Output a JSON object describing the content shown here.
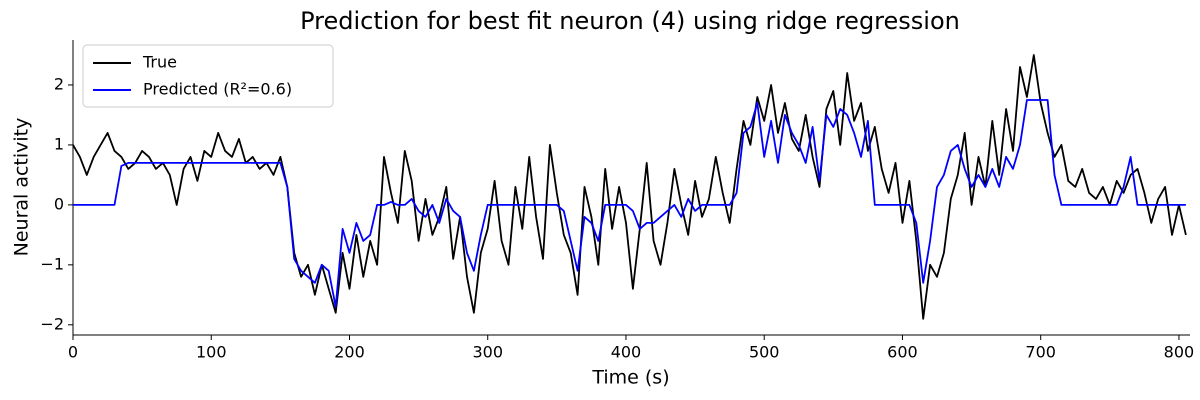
{
  "chart_data": {
    "type": "line",
    "title": "Prediction for best fit neuron (4) using ridge regression",
    "x_label": "Time (s)",
    "y_label": "Neural activity",
    "xlim": [
      0,
      808
    ],
    "ylim": [
      -2.17,
      2.75
    ],
    "xticks": [
      0,
      100,
      200,
      300,
      400,
      500,
      600,
      700,
      800
    ],
    "yticks": [
      {
        "value": -2,
        "label": "−2"
      },
      {
        "value": -1,
        "label": "−1"
      },
      0,
      1,
      2
    ],
    "legend": "upper left",
    "grid": false,
    "x": [
      0,
      5,
      10,
      15,
      20,
      25,
      30,
      35,
      40,
      45,
      50,
      55,
      60,
      65,
      70,
      75,
      80,
      85,
      90,
      95,
      100,
      105,
      110,
      115,
      120,
      125,
      130,
      135,
      140,
      145,
      150,
      155,
      160,
      165,
      170,
      175,
      180,
      185,
      190,
      195,
      200,
      205,
      210,
      215,
      220,
      225,
      230,
      235,
      240,
      245,
      250,
      255,
      260,
      265,
      270,
      275,
      280,
      285,
      290,
      295,
      300,
      305,
      310,
      315,
      320,
      325,
      330,
      335,
      340,
      345,
      350,
      355,
      360,
      365,
      370,
      375,
      380,
      385,
      390,
      395,
      400,
      405,
      410,
      415,
      420,
      425,
      430,
      435,
      440,
      445,
      450,
      455,
      460,
      465,
      470,
      475,
      480,
      485,
      490,
      495,
      500,
      505,
      510,
      515,
      520,
      525,
      530,
      535,
      540,
      545,
      550,
      555,
      560,
      565,
      570,
      575,
      580,
      585,
      590,
      595,
      600,
      605,
      610,
      615,
      620,
      625,
      630,
      635,
      640,
      645,
      650,
      655,
      660,
      665,
      670,
      675,
      680,
      685,
      690,
      695,
      700,
      705,
      710,
      715,
      720,
      725,
      730,
      735,
      740,
      745,
      750,
      755,
      760,
      765,
      770,
      775,
      780,
      785,
      790,
      795,
      800,
      805
    ],
    "series": [
      {
        "name": "True",
        "color": "#000000",
        "values": [
          1.0,
          0.8,
          0.5,
          0.8,
          1.0,
          1.2,
          0.9,
          0.8,
          0.6,
          0.7,
          0.9,
          0.8,
          0.6,
          0.7,
          0.5,
          0.0,
          0.6,
          0.8,
          0.4,
          0.9,
          0.8,
          1.2,
          0.9,
          0.8,
          1.1,
          0.7,
          0.8,
          0.6,
          0.7,
          0.5,
          0.8,
          0.3,
          -0.8,
          -1.2,
          -1.0,
          -1.5,
          -1.0,
          -1.4,
          -1.8,
          -0.8,
          -1.4,
          -0.5,
          -1.2,
          -0.6,
          -1.0,
          0.8,
          0.2,
          -0.3,
          0.9,
          0.4,
          -0.6,
          0.1,
          -0.5,
          -0.2,
          0.3,
          -0.9,
          -0.2,
          -1.2,
          -1.8,
          -0.8,
          -0.4,
          0.4,
          -0.6,
          -1.0,
          0.3,
          -0.4,
          0.8,
          -0.2,
          -0.9,
          1.0,
          0.2,
          -0.5,
          -0.8,
          -1.5,
          0.3,
          -0.2,
          -1.0,
          0.6,
          -0.4,
          0.3,
          -0.3,
          -1.4,
          -0.4,
          0.7,
          -0.6,
          -1.0,
          -0.3,
          0.6,
          0.0,
          -0.5,
          0.4,
          -0.2,
          0.1,
          0.8,
          0.2,
          -0.3,
          0.6,
          1.4,
          1.0,
          1.8,
          1.4,
          2.0,
          1.2,
          1.7,
          1.1,
          0.9,
          1.5,
          0.8,
          0.3,
          1.6,
          1.9,
          1.0,
          2.2,
          1.4,
          1.7,
          0.9,
          1.3,
          0.6,
          0.2,
          0.7,
          -0.3,
          0.4,
          -0.6,
          -1.9,
          -1.0,
          -1.2,
          -0.8,
          0.1,
          0.5,
          1.2,
          0.0,
          0.8,
          0.3,
          1.4,
          0.5,
          1.6,
          0.9,
          2.3,
          1.8,
          2.5,
          1.7,
          1.2,
          0.8,
          1.0,
          0.4,
          0.3,
          0.6,
          0.2,
          0.1,
          0.3,
          0.0,
          0.4,
          0.2,
          0.5,
          0.6,
          0.2,
          -0.3,
          0.1,
          0.3,
          -0.5,
          0.0,
          -0.5
        ]
      },
      {
        "name": "Predicted (R²=0.6)",
        "color": "#0000ff",
        "values": [
          0,
          0,
          0,
          0,
          0,
          0,
          0,
          0.65,
          0.7,
          0.7,
          0.7,
          0.7,
          0.7,
          0.7,
          0.7,
          0.7,
          0.7,
          0.7,
          0.7,
          0.7,
          0.7,
          0.7,
          0.7,
          0.7,
          0.7,
          0.7,
          0.7,
          0.7,
          0.7,
          0.7,
          0.7,
          0.3,
          -0.9,
          -1.1,
          -1.2,
          -1.3,
          -1.0,
          -1.1,
          -1.7,
          -0.4,
          -0.8,
          -0.3,
          -0.6,
          -0.5,
          0,
          0,
          0.05,
          0,
          0,
          0.1,
          -0.1,
          -0.2,
          0,
          -0.3,
          0.1,
          -0.1,
          -0.2,
          -0.8,
          -1.1,
          -0.5,
          0,
          0,
          0,
          0,
          0,
          0,
          0,
          0,
          0,
          0,
          0,
          -0.1,
          -0.6,
          -1.1,
          -0.2,
          -0.3,
          -0.6,
          0,
          0,
          0,
          0,
          -0.1,
          -0.4,
          -0.3,
          -0.3,
          -0.2,
          -0.1,
          0,
          -0.2,
          0.1,
          -0.1,
          0,
          0,
          0,
          0,
          0,
          0.2,
          1.2,
          1.3,
          1.7,
          0.8,
          1.4,
          0.7,
          1.5,
          1.2,
          1.0,
          0.7,
          1.3,
          0.4,
          1.5,
          1.3,
          1.6,
          1.5,
          1.2,
          0.8,
          1.4,
          0,
          0,
          0,
          0,
          0,
          0,
          -0.3,
          -1.3,
          -0.6,
          0.3,
          0.5,
          0.9,
          1.0,
          0.6,
          0.3,
          0.5,
          0.3,
          0.6,
          0.3,
          0.8,
          0.6,
          1.0,
          1.75,
          1.75,
          1.75,
          1.75,
          0.5,
          0,
          0,
          0,
          0,
          0,
          0,
          0,
          0,
          0,
          0.3,
          0.8,
          0,
          0,
          0,
          0,
          0,
          0,
          0,
          0
        ]
      }
    ]
  }
}
